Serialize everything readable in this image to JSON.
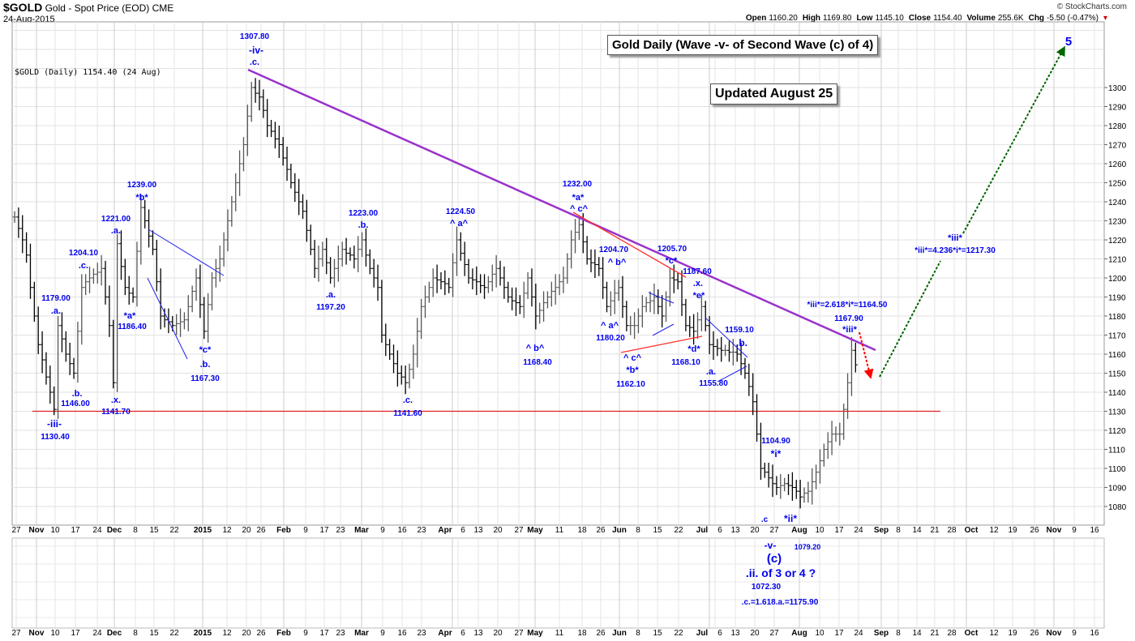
{
  "header": {
    "symbol": "$GOLD",
    "description": "Gold - Spot Price (EOD)",
    "exchange": "CME",
    "date": "24-Aug-2015",
    "credit": "© StockCharts.com",
    "ohlc": [
      {
        "k": "Open",
        "v": "1160.20"
      },
      {
        "k": "High",
        "v": "1169.80"
      },
      {
        "k": "Low",
        "v": "1145.10"
      },
      {
        "k": "Close",
        "v": "1154.40"
      },
      {
        "k": "Volume",
        "v": "255.6K"
      },
      {
        "k": "Chg",
        "v": "-5.50 (-0.47%)"
      }
    ]
  },
  "legend": "$GOLD (Daily) 1154.40 (24 Aug)",
  "title_box": "Gold Daily (Wave -v- of Second Wave (c) of 4)",
  "updated_box": "Updated August 25",
  "colors": {
    "annotation": "#0000ee",
    "trendline": "#9932cc",
    "support": "#e02020",
    "projection": "#006400",
    "bars": "#000000"
  },
  "chart_data": {
    "type": "ohlc",
    "title": "$GOLD (Daily)",
    "ylim": [
      1070,
      1310
    ],
    "yticks": [
      1300,
      1290,
      1280,
      1270,
      1260,
      1250,
      1240,
      1230,
      1220,
      1210,
      1200,
      1190,
      1180,
      1170,
      1160,
      1150,
      1140,
      1130,
      1120,
      1110,
      1100,
      1090,
      1080
    ],
    "xticks": [
      "27",
      "Nov",
      "10",
      "17",
      "24",
      "Dec",
      "8",
      "15",
      "22",
      "2015",
      "12",
      "20",
      "26",
      "Feb",
      "9",
      "17",
      "23",
      "Mar",
      "9",
      "16",
      "23",
      "Apr",
      "6",
      "13",
      "20",
      "27",
      "May",
      "11",
      "18",
      "26",
      "Jun",
      "8",
      "15",
      "22",
      "Jul",
      "6",
      "13",
      "20",
      "27",
      "Aug",
      "10",
      "17",
      "24",
      "Sep",
      "8",
      "14",
      "21",
      "28",
      "Oct",
      "12",
      "19",
      "26",
      "Nov",
      "9",
      "16"
    ],
    "grid": true,
    "support_level": 1130,
    "approx_daily_closes": [
      1232,
      1226,
      1220,
      1212,
      1195,
      1180,
      1165,
      1157,
      1148,
      1140,
      1131,
      1175,
      1168,
      1160,
      1155,
      1150,
      1172,
      1195,
      1198,
      1200,
      1202,
      1203,
      1205,
      1190,
      1175,
      1145,
      1218,
      1206,
      1195,
      1192,
      1190,
      1214,
      1237,
      1230,
      1222,
      1215,
      1198,
      1180,
      1178,
      1177,
      1175,
      1176,
      1177,
      1178,
      1185,
      1193,
      1200,
      1186,
      1172,
      1186,
      1200,
      1205,
      1210,
      1220,
      1230,
      1240,
      1250,
      1260,
      1270,
      1285,
      1300,
      1297,
      1295,
      1288,
      1280,
      1277,
      1273,
      1270,
      1263,
      1257,
      1250,
      1245,
      1240,
      1235,
      1225,
      1215,
      1205,
      1210,
      1215,
      1208,
      1200,
      1205,
      1210,
      1215,
      1213,
      1212,
      1210,
      1215,
      1220,
      1212,
      1205,
      1200,
      1195,
      1170,
      1165,
      1160,
      1155,
      1150,
      1148,
      1145,
      1152,
      1160,
      1172,
      1185,
      1190,
      1195,
      1200,
      1199,
      1198,
      1197,
      1195,
      1208,
      1220,
      1213,
      1207,
      1200,
      1199,
      1198,
      1196,
      1195,
      1198,
      1202,
      1205,
      1200,
      1195,
      1190,
      1188,
      1187,
      1185,
      1192,
      1200,
      1190,
      1180,
      1183,
      1187,
      1190,
      1193,
      1195,
      1198,
      1200,
      1210,
      1220,
      1224,
      1228,
      1219,
      1210,
      1208,
      1207,
      1205,
      1195,
      1185,
      1188,
      1192,
      1195,
      1185,
      1175,
      1175,
      1175,
      1180,
      1185,
      1187,
      1188,
      1190,
      1185,
      1180,
      1190,
      1200,
      1199,
      1198,
      1186,
      1175,
      1174,
      1172,
      1178,
      1185,
      1175,
      1165,
      1164,
      1163,
      1162,
      1162,
      1161,
      1161,
      1160,
      1155,
      1150,
      1143,
      1135,
      1118,
      1100,
      1098,
      1095,
      1092,
      1090,
      1091,
      1092,
      1091,
      1090,
      1088,
      1085,
      1087,
      1088,
      1093,
      1098,
      1104,
      1110,
      1114,
      1118,
      1118,
      1118,
      1131,
      1145,
      1162,
      1154.4
    ],
    "annotations": [
      "1307.80",
      "-iv-",
      ".c.",
      "1239.00",
      "*b*",
      "1221.00",
      ".a.",
      "1204.10",
      ".c.",
      "1179.00",
      ".a.",
      "*a*",
      "1186.40",
      ".b.",
      "1146.00",
      ".x.",
      "1141.70",
      "-iii-",
      "1130.40",
      "*c*",
      ".b.",
      "1167.30",
      "1223.00",
      ".b.",
      "1224.50",
      "^ a^",
      ".a.",
      "1197.20",
      ".c.",
      "1141.60",
      "^ b^",
      "1168.40",
      "1232.00",
      "*a*",
      "^ c^",
      "1204.70",
      "^ b^",
      "1205.70",
      "*c*",
      "1187.60",
      ".x.",
      "*e*",
      "^ a^",
      "1180.20",
      "^ c^",
      "*b*",
      "1162.10",
      "*d*",
      "1168.10",
      "1159.10",
      ".b.",
      ".a.",
      "1155.80",
      "*iii*=2.618*i*=1164.50",
      "1167.90",
      "*iii*",
      "1104.90",
      "*i*",
      "*ii*",
      "*iii*",
      "*iii*=4.236*i*=1217.30",
      "5",
      "-v-",
      "1079.20",
      "(c)",
      ".ii. of 3 or 4 ?",
      "1072.30",
      ".c.=1.618.a.=1175.90",
      ".c"
    ]
  }
}
